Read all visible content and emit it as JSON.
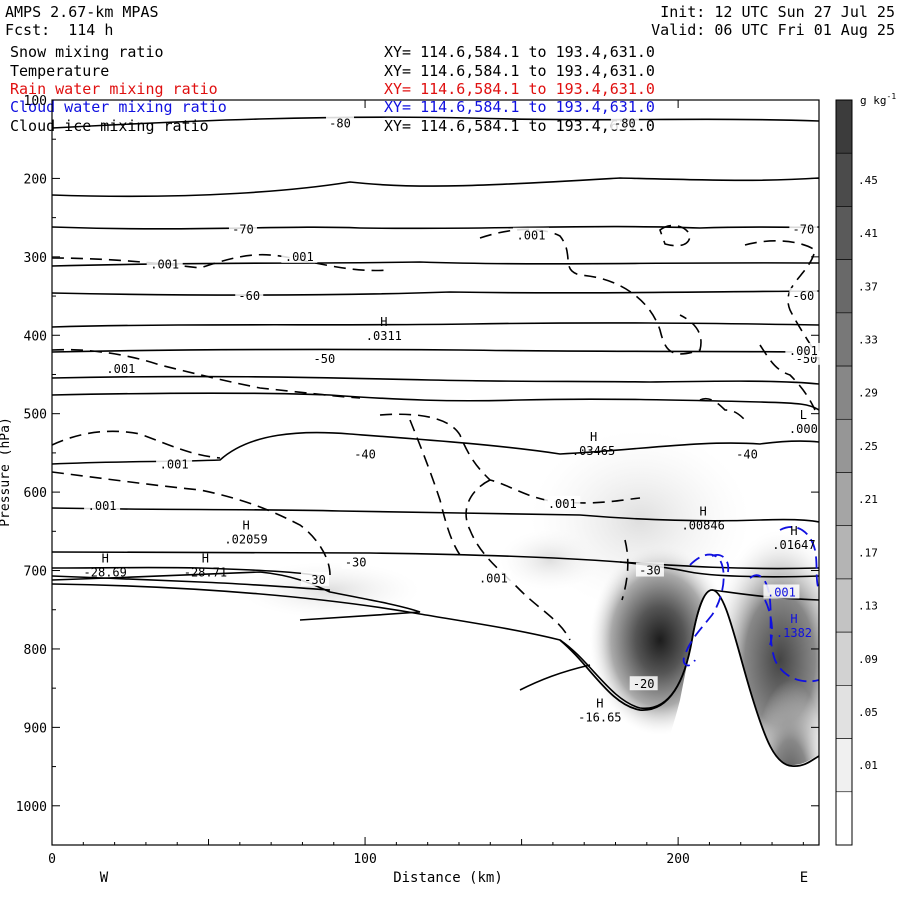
{
  "header": {
    "model": "AMPS 2.67-km MPAS",
    "fcst": "Fcst:  114 h",
    "init": "Init: 12 UTC Sun 27 Jul 25",
    "valid": "Valid: 06 UTC Fri 01 Aug 25"
  },
  "fields": [
    {
      "name": "Snow mixing ratio",
      "xy": "XY= 114.6,584.1 to 193.4,631.0",
      "color": "#000000"
    },
    {
      "name": "Temperature",
      "xy": "XY= 114.6,584.1 to 193.4,631.0",
      "color": "#000000"
    },
    {
      "name": "Rain water mixing ratio",
      "xy": "XY= 114.6,584.1 to 193.4,631.0",
      "color": "#e01010"
    },
    {
      "name": "Cloud water mixing ratio",
      "xy": "XY= 114.6,584.1 to 193.4,631.0",
      "color": "#1010e0"
    },
    {
      "name": "Cloud ice mixing ratio",
      "xy": "XY= 114.6,584.1 to 193.4,631.0",
      "color": "#000000"
    }
  ],
  "chart_data": {
    "type": "heatmap",
    "title": "",
    "xlabel": "Distance (km)",
    "ylabel": "Pressure (hPa)",
    "xlim": [
      0,
      245
    ],
    "ylim": [
      1050,
      100
    ],
    "x_ticks": [
      0,
      100,
      200
    ],
    "y_ticks": [
      100,
      200,
      300,
      400,
      500,
      600,
      700,
      800,
      900,
      1000
    ],
    "x_end_labels": {
      "left": "W",
      "right": "E"
    },
    "colorbar": {
      "units": "g kg",
      "units_sup": "-1",
      "labels": [
        ".45",
        ".41",
        ".37",
        ".33",
        ".29",
        ".25",
        ".21",
        ".17",
        ".13",
        ".09",
        ".05",
        ".01"
      ],
      "levels": 14
    },
    "temperature_contours": [
      {
        "value": -80,
        "pressure": 130
      },
      {
        "value": -70,
        "pressure": 265
      },
      {
        "value": -60,
        "pressure": 350
      },
      {
        "value": -50,
        "pressure": 432
      },
      {
        "value": -40,
        "pressure": 548
      },
      {
        "value": -30,
        "pressure": 700
      },
      {
        "value": -20,
        "pressure": 850
      }
    ],
    "contour_labels": [
      {
        "text": "-80",
        "x": 92,
        "p": 130,
        "color": "#000000"
      },
      {
        "text": "-80",
        "x": 183,
        "p": 130,
        "color": "#000000"
      },
      {
        "text": "-70",
        "x": 61,
        "p": 265,
        "color": "#000000"
      },
      {
        "text": "-70",
        "x": 240,
        "p": 265,
        "color": "#000000"
      },
      {
        "text": "-60",
        "x": 63,
        "p": 350,
        "color": "#000000"
      },
      {
        "text": "-60",
        "x": 240,
        "p": 350,
        "color": "#000000"
      },
      {
        "text": "-50",
        "x": 87,
        "p": 430,
        "color": "#000000"
      },
      {
        "text": "-50",
        "x": 241,
        "p": 430,
        "color": "#000000"
      },
      {
        "text": "-40",
        "x": 100,
        "p": 552,
        "color": "#000000"
      },
      {
        "text": "-40",
        "x": 222,
        "p": 552,
        "color": "#000000"
      },
      {
        "text": "-30",
        "x": 97,
        "p": 690,
        "color": "#000000"
      },
      {
        "text": "-30",
        "x": 84,
        "p": 712,
        "color": "#000000"
      },
      {
        "text": "-30",
        "x": 191,
        "p": 700,
        "color": "#000000"
      },
      {
        "text": "-20",
        "x": 189,
        "p": 845,
        "color": "#000000"
      },
      {
        "text": ".001",
        "x": 36,
        "p": 310,
        "color": "#000000"
      },
      {
        "text": ".001",
        "x": 79,
        "p": 300,
        "color": "#000000"
      },
      {
        "text": ".001",
        "x": 153,
        "p": 273,
        "color": "#000000"
      },
      {
        "text": ".001",
        "x": 22,
        "p": 443,
        "color": "#000000"
      },
      {
        "text": ".001",
        "x": 39,
        "p": 565,
        "color": "#000000"
      },
      {
        "text": ".001",
        "x": 16,
        "p": 618,
        "color": "#000000"
      },
      {
        "text": ".001",
        "x": 163,
        "p": 615,
        "color": "#000000"
      },
      {
        "text": ".001",
        "x": 141,
        "p": 710,
        "color": "#000000"
      },
      {
        "text": ".001",
        "x": 240,
        "p": 420,
        "color": "#000000"
      },
      {
        "text": ".001",
        "x": 233,
        "p": 728,
        "color": "#1010e0"
      }
    ],
    "extrema": [
      {
        "type": "H",
        "value": ".0311",
        "x": 106,
        "p": 393
      },
      {
        "type": "H",
        "value": ".03465",
        "x": 173,
        "p": 540
      },
      {
        "type": "L",
        "value": ".000",
        "x": 240,
        "p": 512
      },
      {
        "type": "H",
        "value": ".02059",
        "x": 62,
        "p": 653
      },
      {
        "type": "H",
        "value": ".00846",
        "x": 208,
        "p": 635
      },
      {
        "type": "H",
        "value": ".01647",
        "x": 237,
        "p": 660
      },
      {
        "type": "H",
        "value": "-28.69",
        "x": 17,
        "p": 695
      },
      {
        "type": "H",
        "value": "-28.71",
        "x": 49,
        "p": 695
      },
      {
        "type": "H",
        "value": ".1382",
        "x": 237,
        "p": 772
      },
      {
        "type": "H",
        "value": "-16.65",
        "x": 175,
        "p": 880
      }
    ],
    "terrain": [
      {
        "x": 0,
        "p": 1050
      },
      {
        "x": 185,
        "p": 1050
      },
      {
        "x": 200,
        "p": 800
      },
      {
        "x": 207,
        "p": 735
      },
      {
        "x": 212,
        "p": 725
      },
      {
        "x": 217,
        "p": 738
      },
      {
        "x": 223,
        "p": 780
      },
      {
        "x": 231,
        "p": 860
      },
      {
        "x": 236,
        "p": 930
      },
      {
        "x": 240,
        "p": 951
      },
      {
        "x": 245,
        "p": 945
      },
      {
        "x": 245,
        "p": 1050
      }
    ]
  }
}
